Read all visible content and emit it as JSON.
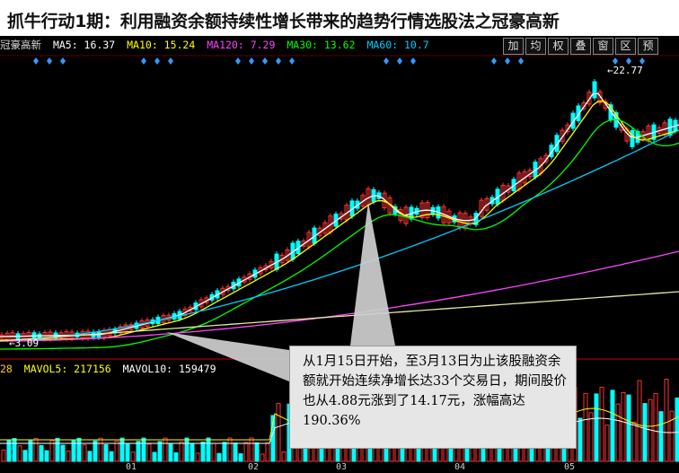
{
  "title": "抓牛行动1期：利用融资余额持续性增长带来的趋势行情选股法之冠豪高新",
  "ma_bar": {
    "stock_name": "冠豪高新",
    "ma5": "MA5: 16.37",
    "ma10": "MA10: 15.24",
    "ma120": "MA120: 7.29",
    "ma30": "MA30: 13.62",
    "ma60": "MA60: 10.7"
  },
  "toolbar": [
    "加",
    "均",
    "权",
    "叠",
    "窗",
    "区",
    "预"
  ],
  "price_labels": {
    "high": "22.77",
    "low": "3.09"
  },
  "vol_bar": {
    "prefix": "28",
    "mavol5": "MAVOL5: 217156",
    "mavol10": "MAVOL10: 159479"
  },
  "months": [
    "01",
    "02",
    "03",
    "04",
    "05"
  ],
  "annotation": "从1月15日开始，至3月13日为止该股融资余额就开始连续净增长达33个交易日，期间股价也从4.88元涨到了14.17元，涨幅高达190.36%",
  "colors": {
    "ma5": "#ffffff",
    "ma10": "#ffff00",
    "ma120": "#ff44ff",
    "ma30": "#00ff00",
    "ma60": "#00ccff",
    "up": "#ff3333",
    "down": "#00ffff"
  }
}
